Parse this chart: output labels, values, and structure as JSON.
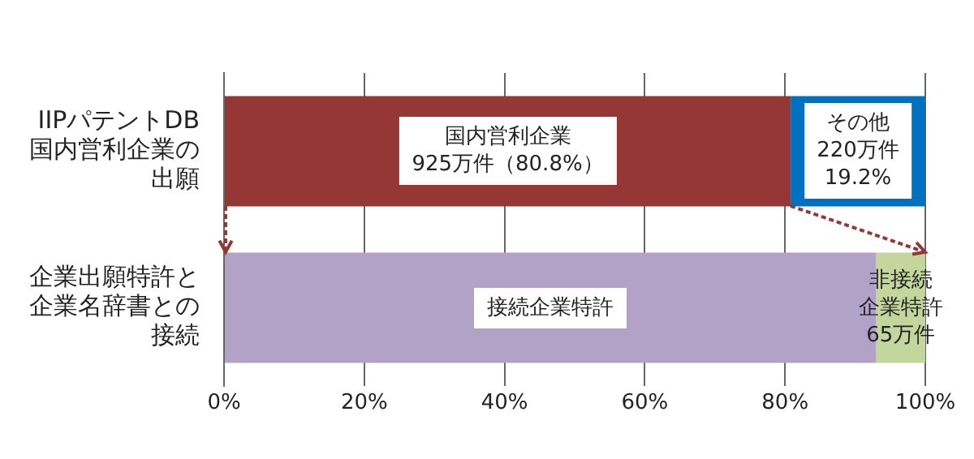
{
  "chart_data": {
    "type": "bar",
    "orientation": "horizontal",
    "stacked": true,
    "categories": [
      "IIPパテントDB国内営利企業の出願",
      "企業出願特許と企業名辞書との接続"
    ],
    "series": [
      {
        "colors": [
          "#953735",
          "#b3a2c7"
        ],
        "values": [
          80.8,
          93
        ],
        "value_labels": [
          "国内営利企業925万件（80.8%）",
          "接続企業特許"
        ]
      },
      {
        "colors": [
          "#0070c0",
          "#c3d69b"
        ],
        "values": [
          19.2,
          7
        ],
        "value_labels": [
          "その他220万件19.2%",
          "非接続企業特許65万件"
        ]
      }
    ],
    "xlim": [
      0,
      100
    ],
    "xticks": [
      {
        "value": 0,
        "label": "0%"
      },
      {
        "value": 20,
        "label": "20%"
      },
      {
        "value": 40,
        "label": "40%"
      },
      {
        "value": 60,
        "label": "60%"
      },
      {
        "value": 80,
        "label": "80%"
      },
      {
        "value": 100,
        "label": "100%"
      }
    ],
    "grid": "x",
    "legend": false
  }
}
